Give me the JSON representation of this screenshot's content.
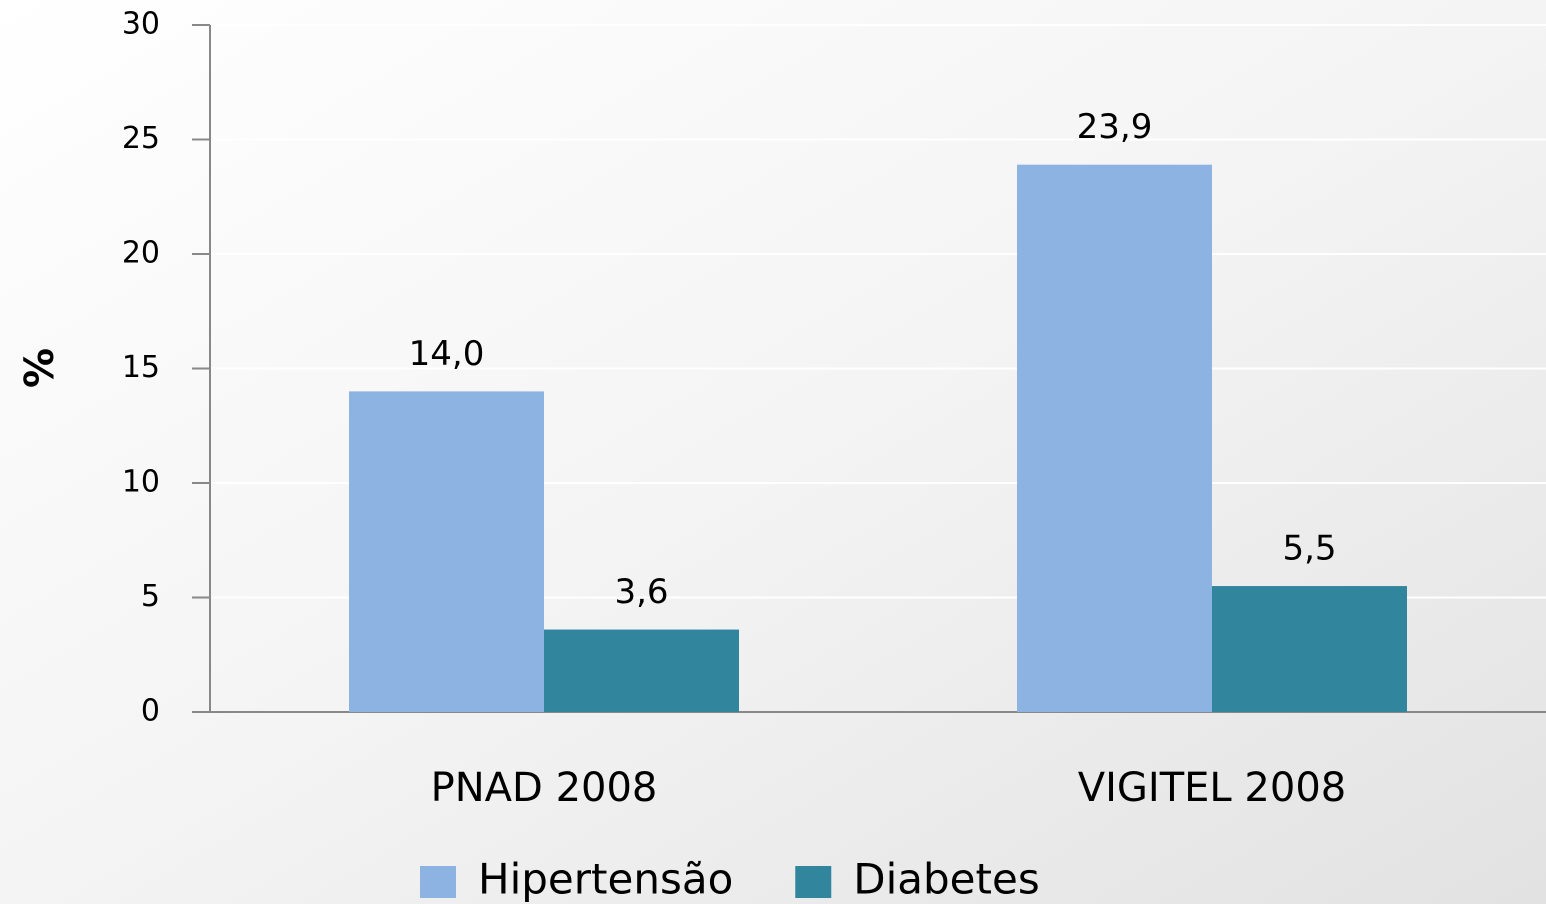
{
  "chart_data": {
    "type": "bar",
    "categories": [
      "PNAD 2008",
      "VIGITEL 2008"
    ],
    "series": [
      {
        "name": "Hipertensão",
        "color": "#8db3e2",
        "values": [
          14.0,
          23.9
        ],
        "value_labels": [
          "14,0",
          "23,9"
        ]
      },
      {
        "name": "Diabetes",
        "color": "#31859c",
        "values": [
          3.6,
          5.5
        ],
        "value_labels": [
          "3,6",
          "5,5"
        ]
      }
    ],
    "y_label": "%",
    "ylim": [
      0,
      30
    ],
    "yticks": [
      0,
      5,
      10,
      15,
      20,
      25,
      30
    ],
    "grid": true,
    "legend": "bottom"
  }
}
